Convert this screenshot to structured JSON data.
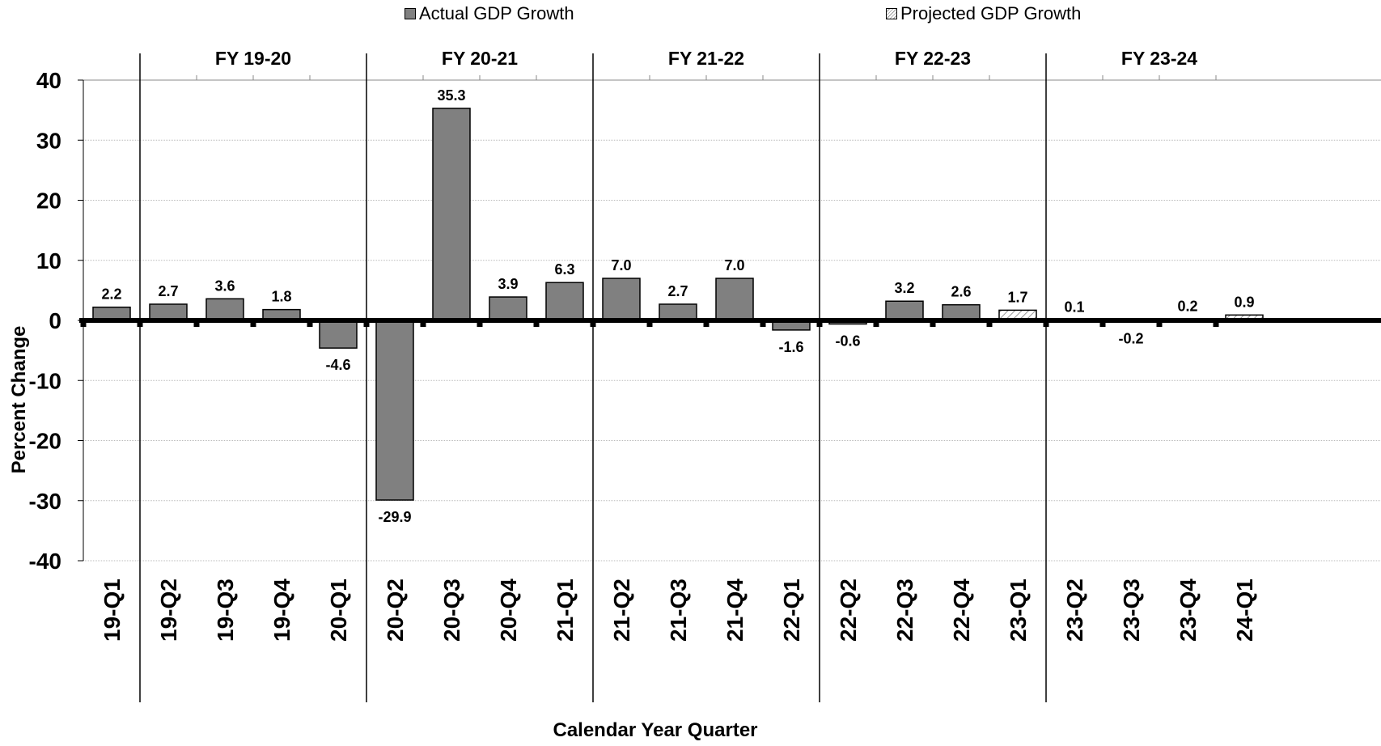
{
  "legend": {
    "actual": "Actual GDP Growth",
    "projected": "Projected GDP Growth"
  },
  "chart_data": {
    "type": "bar",
    "xlabel": "Calendar Year Quarter",
    "ylabel": "Percent Change",
    "ylim": [
      -40,
      40
    ],
    "yticks": [
      40,
      30,
      20,
      10,
      0,
      -10,
      -20,
      -30,
      -40
    ],
    "grid": true,
    "legend_position": "top",
    "categories": [
      "19-Q1",
      "19-Q2",
      "19-Q3",
      "19-Q4",
      "20-Q1",
      "20-Q2",
      "20-Q3",
      "20-Q4",
      "21-Q1",
      "21-Q2",
      "21-Q3",
      "21-Q4",
      "22-Q1",
      "22-Q2",
      "22-Q3",
      "22-Q4",
      "23-Q1",
      "23-Q2",
      "23-Q3",
      "23-Q4",
      "24-Q1"
    ],
    "series": [
      {
        "name": "Actual GDP Growth",
        "values": [
          2.2,
          2.7,
          3.6,
          1.8,
          -4.6,
          -29.9,
          35.3,
          3.9,
          6.3,
          7.0,
          2.7,
          7.0,
          -1.6,
          -0.6,
          3.2,
          2.6,
          null,
          null,
          null,
          null,
          null
        ]
      },
      {
        "name": "Projected GDP Growth",
        "values": [
          null,
          null,
          null,
          null,
          null,
          null,
          null,
          null,
          null,
          null,
          null,
          null,
          null,
          null,
          null,
          null,
          1.7,
          0.1,
          -0.2,
          0.2,
          0.9
        ]
      }
    ],
    "data_labels": [
      "2.2",
      "2.7",
      "3.6",
      "1.8",
      "-4.6",
      "-29.9",
      "35.3",
      "3.9",
      "6.3",
      "7.0",
      "2.7",
      "7.0",
      "-1.6",
      "-0.6",
      "3.2",
      "2.6",
      "1.7",
      "0.1",
      "-0.2",
      "0.2",
      "0.9"
    ],
    "fiscal_years": [
      {
        "label": "FY   19-20",
        "start_category": 1,
        "end_category": 4
      },
      {
        "label": "FY   20-21",
        "start_category": 5,
        "end_category": 8
      },
      {
        "label": "FY   21-22",
        "start_category": 9,
        "end_category": 12
      },
      {
        "label": "FY   22-23",
        "start_category": 13,
        "end_category": 16
      },
      {
        "label": "FY   23-24",
        "start_category": 17,
        "end_category": 20
      }
    ],
    "colors": {
      "actual": "#808080",
      "projected_hatch": "#9a9a9a",
      "grid": "#bbbbbb"
    }
  }
}
